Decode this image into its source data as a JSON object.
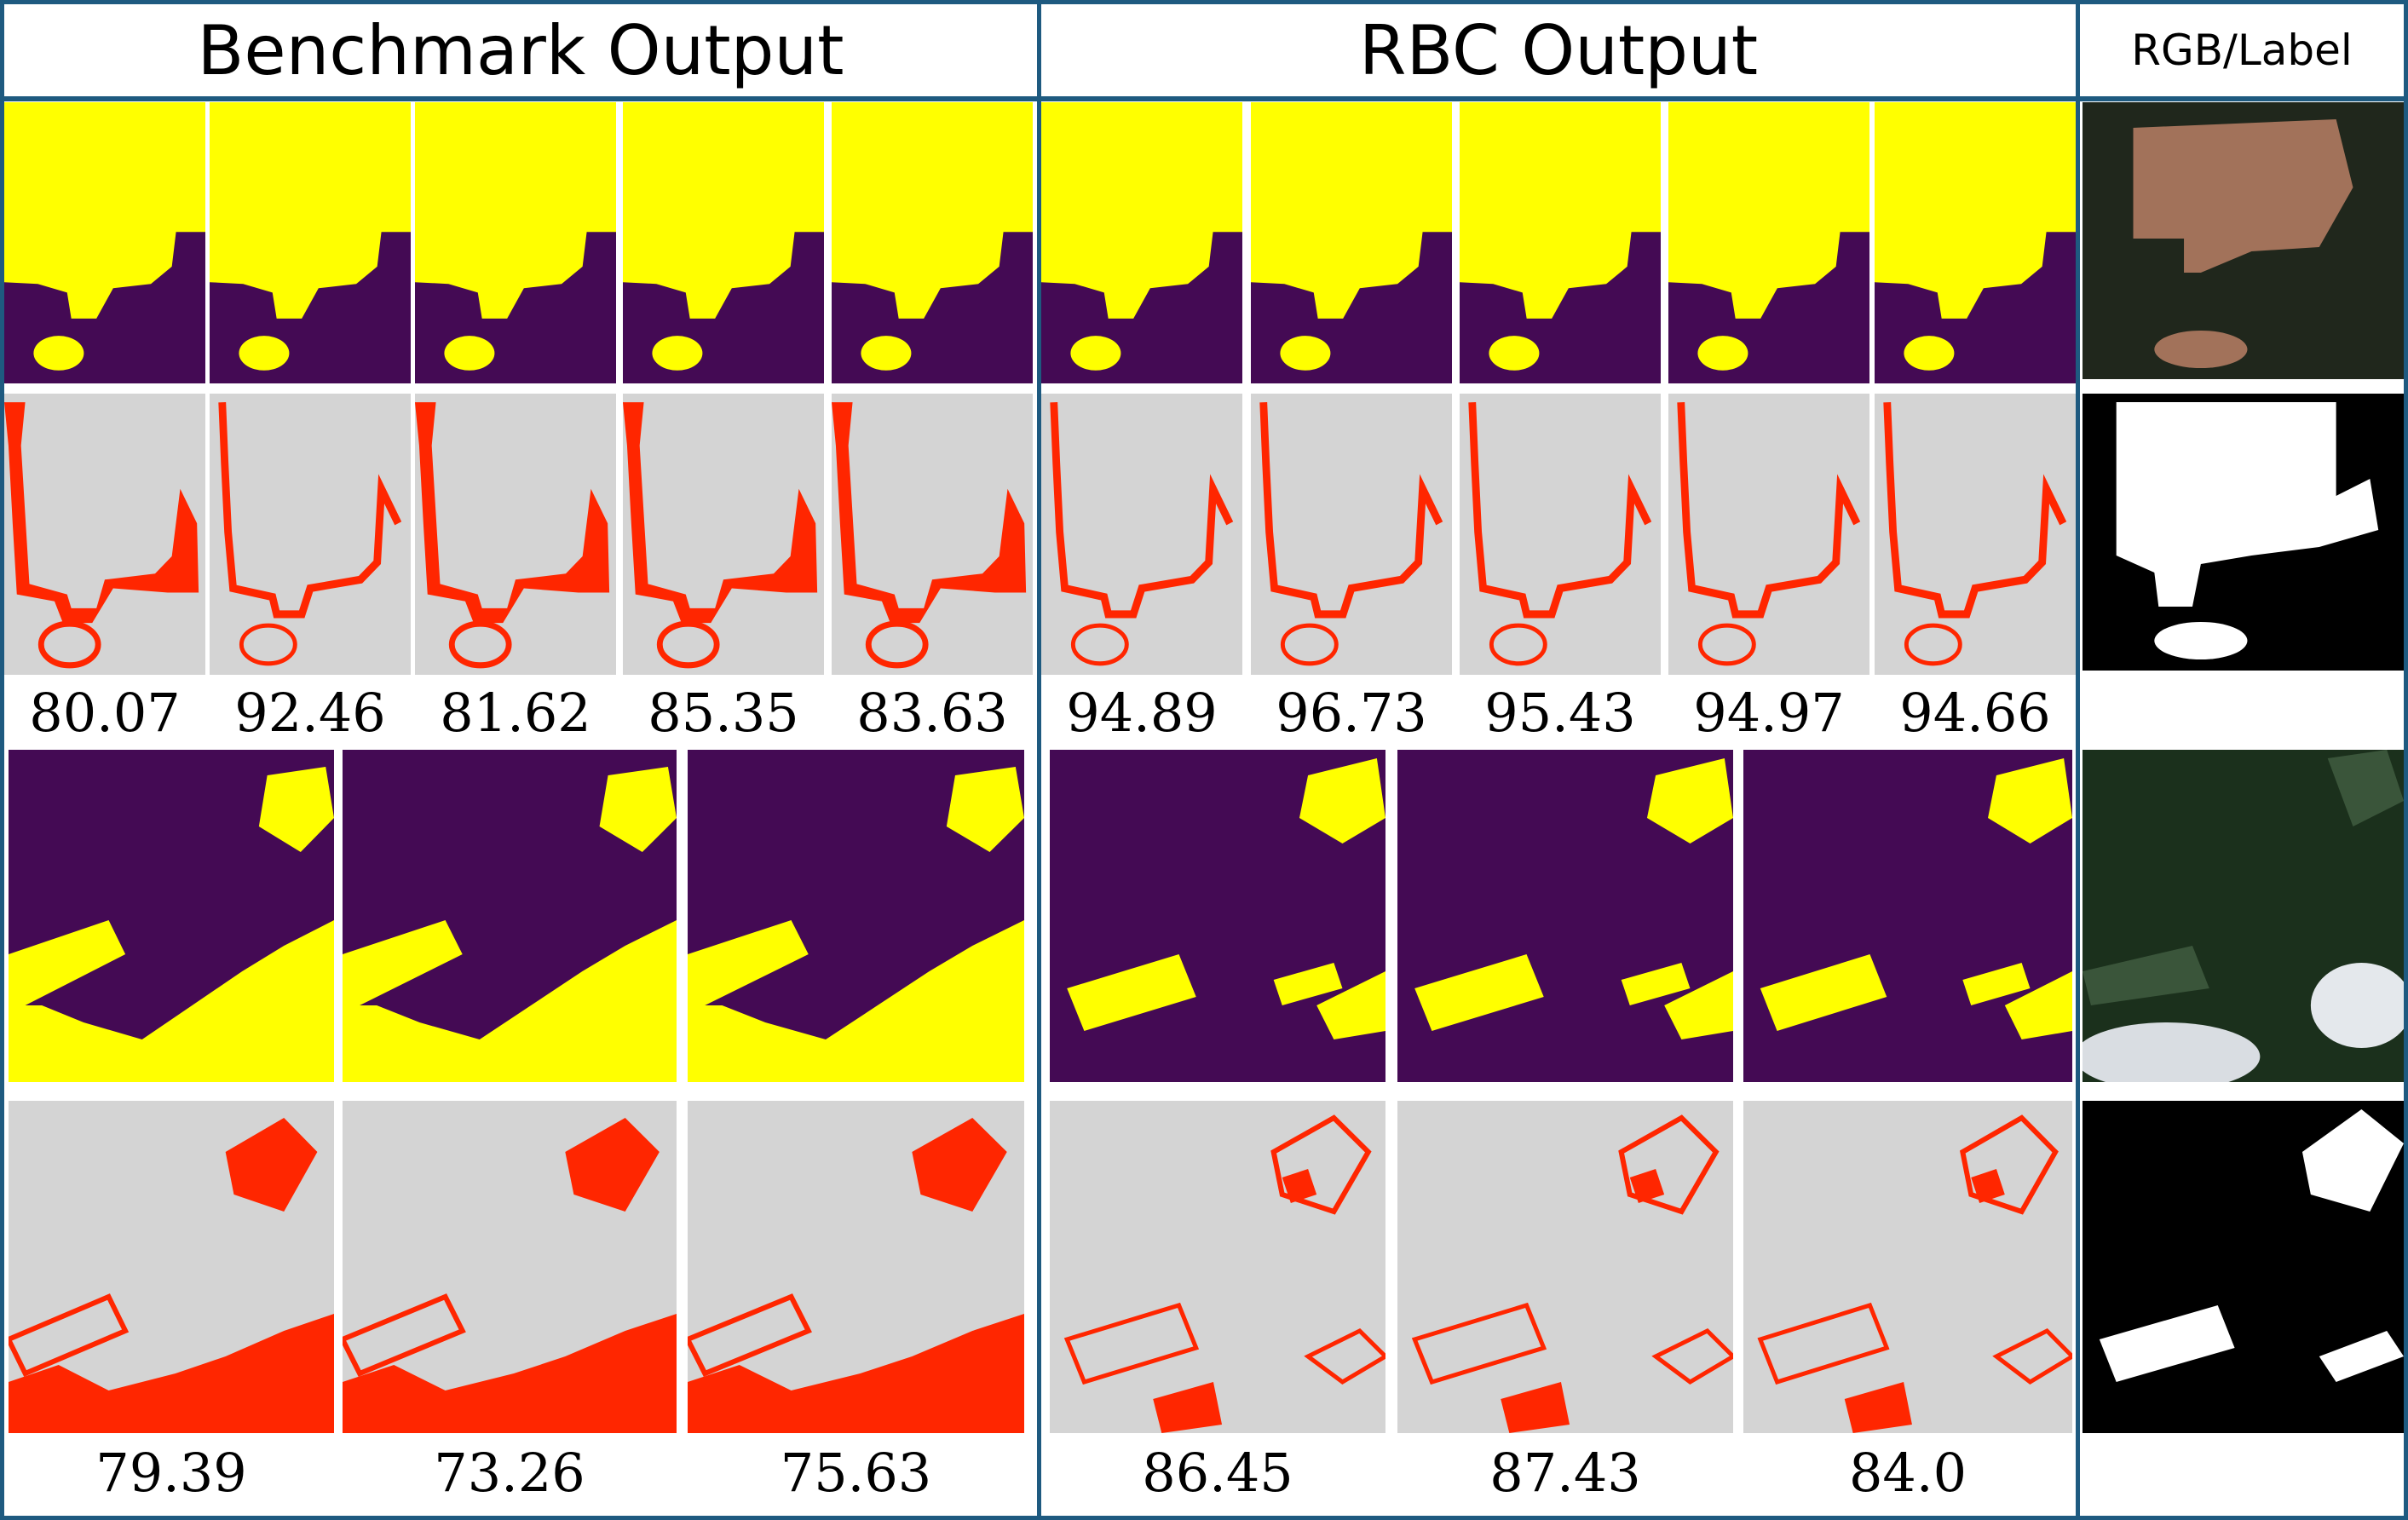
{
  "headers": {
    "benchmark": "Benchmark Output",
    "rbc": "RBC Output",
    "reference": "RGB/Label"
  },
  "scores": {
    "sample1_benchmark": [
      "80.07",
      "92.46",
      "81.62",
      "85.35",
      "83.63"
    ],
    "sample1_rbc": [
      "94.89",
      "96.73",
      "95.43",
      "94.97",
      "94.66"
    ],
    "sample2_benchmark": [
      "79.39",
      "73.26",
      "75.63"
    ],
    "sample2_rbc": [
      "86.45",
      "87.43",
      "84.0"
    ]
  },
  "colors": {
    "frame": "#1e5a80",
    "yellow": "#ffff00",
    "purple": "#440a54",
    "gray": "#d4d4d4",
    "red": "#ff2600"
  }
}
